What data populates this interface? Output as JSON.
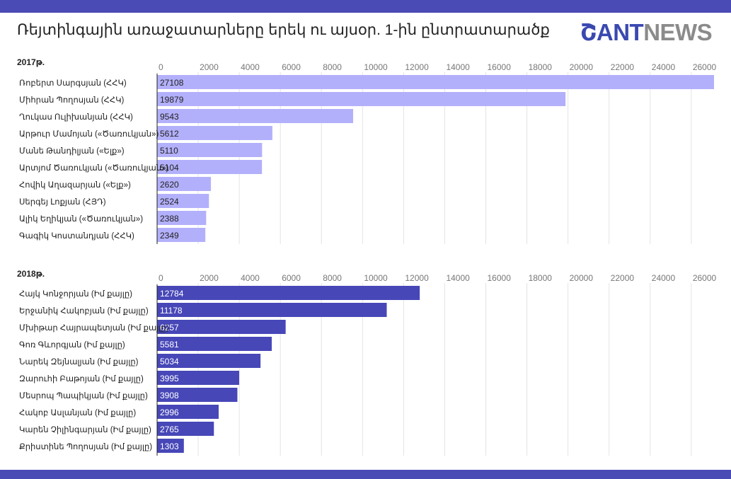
{
  "title": "Ռեյտինգային առաջատարները երեկ ու այսօր. 1-ին ընտրատարածք",
  "logo": {
    "part1": "ՇANT",
    "part2": "NEWS"
  },
  "colors": {
    "bar_2017": "#b3b0fb",
    "bar_2018": "#4747b8",
    "frame": "#4a4bb4",
    "grid": "#e4e4e4"
  },
  "chart_data": [
    {
      "type": "bar",
      "orientation": "horizontal",
      "label": "2017թ.",
      "xlim": [
        0,
        27108
      ],
      "ticks": [
        0,
        2000,
        4000,
        6000,
        8000,
        10000,
        12000,
        14000,
        16000,
        18000,
        20000,
        22000,
        24000,
        26000
      ],
      "categories": [
        "Ռոբերտ Սարգսյան (ՀՀԿ)",
        "Միհրան Պողոսյան (ՀՀԿ)",
        "Ղուկաս Ուլիխանյան (ՀՀԿ)",
        "Արթուր Մամոյան («Ծառուկյան»)",
        "Մանե Թանդիլյան («Ելք»)",
        "Արտյոմ Ծառուկյան («Ծառուկյան»)",
        "Հովիկ Աղազարյան («Ելք»)",
        "Սերգեյ Լոքյան (ՀՅԴ)",
        "Ալիկ Եղիկյան («Ծառուկյան»)",
        "Գագիկ Կոստանդյան (ՀՀԿ)"
      ],
      "values": [
        27108,
        19879,
        9543,
        5612,
        5110,
        5104,
        2620,
        2524,
        2388,
        2349
      ]
    },
    {
      "type": "bar",
      "orientation": "horizontal",
      "label": "2018թ.",
      "xlim": [
        0,
        27108
      ],
      "ticks": [
        0,
        2000,
        4000,
        6000,
        8000,
        10000,
        12000,
        14000,
        16000,
        18000,
        20000,
        22000,
        24000,
        26000
      ],
      "categories": [
        "Հայկ Կոնջորյան (Իմ քայլը)",
        "Երջանիկ Հակոբյան (Իմ քայլը)",
        "Մխիթար Հայրապետյան (Իմ քայլը)",
        "Գոռ Գևորգյան (Իմ քայլը)",
        "Նարեկ Զեյնալյան (Իմ քայլը)",
        "Զարուհի Բաթոյան (Իմ քայլը)",
        "Մեսրոպ Պապիկյան (Իմ քայլը)",
        "Հակոբ Ասլանյան (Իմ քայլը)",
        "Կարեն Չիլինգարյան (Իմ քայլը)",
        "Քրիստինե Պողոսյան (Իմ քայլը)"
      ],
      "values": [
        12784,
        11178,
        6257,
        5581,
        5034,
        3995,
        3908,
        2996,
        2765,
        1303
      ]
    }
  ]
}
